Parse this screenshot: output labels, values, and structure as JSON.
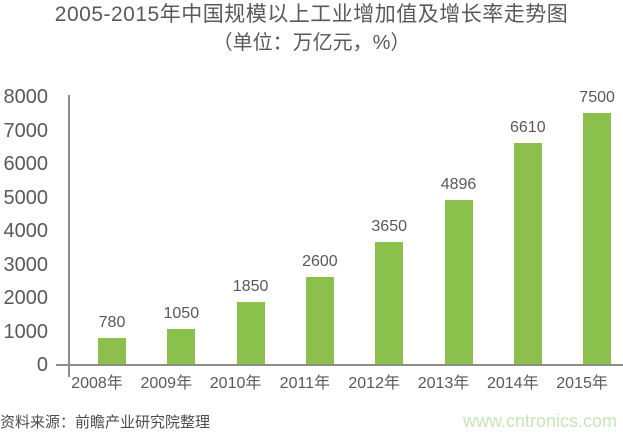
{
  "title": {
    "line1": "2005-2015年中国规模以上工业增加值及增长率走势图",
    "line2": "（单位：万亿元，%）"
  },
  "chart_data": {
    "type": "bar",
    "title": "2005-2015年中国规模以上工业增加值及增长率走势图",
    "subtitle": "（单位：万亿元，%）",
    "categories": [
      "2008年",
      "2009年",
      "2010年",
      "2011年",
      "2012年",
      "2013年",
      "2014年",
      "2015年"
    ],
    "values": [
      780,
      1050,
      1850,
      2600,
      3650,
      4896,
      6610,
      7500
    ],
    "xlabel": "",
    "ylabel": "",
    "ylim": [
      0,
      8000
    ],
    "yticks": [
      0,
      1000,
      2000,
      3000,
      4000,
      5000,
      6000,
      7000,
      8000
    ],
    "grid": false,
    "legend": false,
    "data_labels": true,
    "bar_color": "#8cc04d"
  },
  "footer": {
    "source": "资料来源：前瞻产业研究院整理",
    "watermark": "www.cntronics.com"
  },
  "colors": {
    "bar": "#8cc04d",
    "axis": "#8c8c8c",
    "text": "#595959",
    "watermark": "#c9e6b7",
    "background": "#ffffff"
  }
}
